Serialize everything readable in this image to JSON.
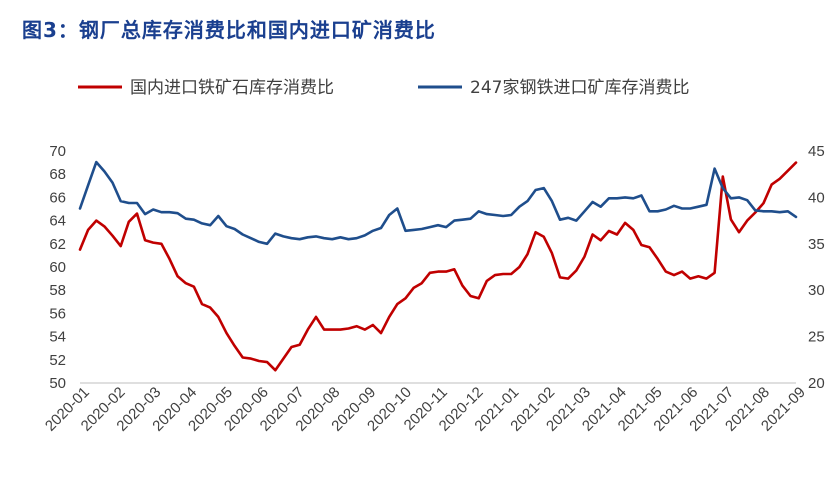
{
  "title": "图3：钢厂总库存消费比和国内进口矿消费比",
  "chart_data": {
    "type": "line",
    "title": "图3：钢厂总库存消费比和国内进口矿消费比",
    "x_labels": [
      "2020-01",
      "2020-02",
      "2020-03",
      "2020-04",
      "2020-05",
      "2020-06",
      "2020-07",
      "2020-08",
      "2020-09",
      "2020-10",
      "2020-11",
      "2020-12",
      "2021-01",
      "2021-02",
      "2021-03",
      "2021-04",
      "2021-05",
      "2021-06",
      "2021-07",
      "2021-08",
      "2021-09"
    ],
    "y_left": {
      "min": 50,
      "max": 70,
      "ticks": [
        50,
        52,
        54,
        56,
        58,
        60,
        62,
        64,
        66,
        68,
        70
      ]
    },
    "y_right": {
      "min": 20,
      "max": 45,
      "ticks": [
        20,
        25,
        30,
        35,
        40,
        45
      ]
    },
    "legend_position": "top",
    "grid": false,
    "series": [
      {
        "name": "国内进口铁矿石库存消费比",
        "axis": "left",
        "color": "#c00000",
        "values": [
          61.5,
          63.2,
          64.0,
          63.5,
          62.7,
          61.8,
          63.9,
          64.6,
          62.3,
          62.1,
          62.0,
          60.7,
          59.2,
          58.6,
          58.3,
          56.8,
          56.5,
          55.7,
          54.3,
          53.2,
          52.2,
          52.1,
          51.9,
          51.8,
          51.1,
          52.1,
          53.1,
          53.3,
          54.6,
          55.7,
          54.6,
          54.6,
          54.6,
          54.7,
          54.9,
          54.6,
          55.0,
          54.3,
          55.7,
          56.8,
          57.3,
          58.2,
          58.6,
          59.5,
          59.6,
          59.6,
          59.8,
          58.4,
          57.5,
          57.3,
          58.8,
          59.3,
          59.4,
          59.4,
          60.0,
          61.1,
          63.0,
          62.6,
          61.2,
          59.1,
          59.0,
          59.7,
          60.9,
          62.8,
          62.3,
          63.1,
          62.8,
          63.8,
          63.2,
          61.9,
          61.7,
          60.7,
          59.6,
          59.3,
          59.6,
          59.0,
          59.2,
          59.0,
          59.5,
          67.8,
          64.1,
          63.0,
          64.0,
          64.7,
          65.5,
          67.1,
          67.6,
          68.3,
          69.0
        ]
      },
      {
        "name": "247家钢铁进口矿库存消费比",
        "axis": "right",
        "color": "#1f4e8c",
        "values": [
          38.8,
          41.3,
          43.8,
          42.8,
          41.6,
          39.6,
          39.4,
          39.4,
          38.2,
          38.7,
          38.4,
          38.4,
          38.3,
          37.7,
          37.6,
          37.2,
          37.0,
          38.0,
          36.9,
          36.6,
          36.0,
          35.6,
          35.2,
          35.0,
          36.1,
          35.8,
          35.6,
          35.5,
          35.7,
          35.8,
          35.6,
          35.5,
          35.7,
          35.5,
          35.6,
          35.9,
          36.4,
          36.7,
          38.1,
          38.8,
          36.4,
          36.5,
          36.6,
          36.8,
          37.0,
          36.8,
          37.5,
          37.6,
          37.7,
          38.5,
          38.2,
          38.1,
          38.0,
          38.1,
          39.0,
          39.6,
          40.8,
          41.0,
          39.6,
          37.6,
          37.8,
          37.5,
          38.5,
          39.5,
          39.0,
          39.9,
          39.9,
          40.0,
          39.9,
          40.2,
          38.5,
          38.5,
          38.7,
          39.1,
          38.8,
          38.8,
          39.0,
          39.2,
          43.1,
          41.0,
          39.9,
          40.0,
          39.7,
          38.6,
          38.5,
          38.5,
          38.4,
          38.5,
          37.9
        ]
      }
    ]
  }
}
